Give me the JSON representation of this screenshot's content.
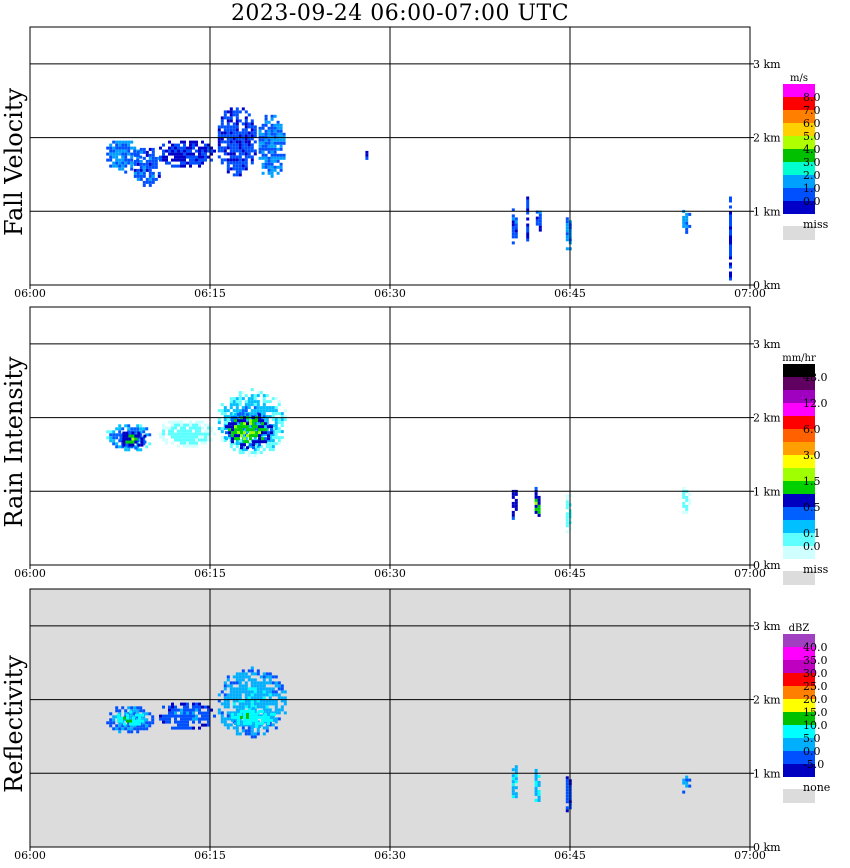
{
  "title": "2023-09-24   06:00-07:00 UTC",
  "x_ticks": [
    "06:00",
    "06:15",
    "06:30",
    "06:45",
    "07:00"
  ],
  "y_ticks": [
    "0 km",
    "1 km",
    "2 km",
    "3 km"
  ],
  "colors": {
    "missing_background": "#dcdcdc",
    "plot_background": "#ffffff"
  },
  "chart_data": [
    {
      "type": "heatmap",
      "ylabel": "Fall Velocity",
      "xlim": [
        "06:00",
        "07:00"
      ],
      "ylim_km": [
        0,
        3.5
      ],
      "grid": true,
      "legend_placement": "right",
      "colorbar": {
        "unit": "m/s",
        "labels": [
          "8.0",
          "7.0",
          "6.0",
          "5.0",
          "4.0",
          "3.0",
          "2.0",
          "1.0",
          "0.0"
        ],
        "colors": [
          "#ff00ff",
          "#ff0000",
          "#ff8000",
          "#ffd000",
          "#b0ff00",
          "#00c000",
          "#00ffd0",
          "#00a0ff",
          "#0050ff",
          "#0000c8"
        ],
        "missing_label": "miss",
        "missing_color": "#dcdcdc"
      },
      "echoes": [
        {
          "t0": 6.1,
          "t1": 9.2,
          "z0": 1.55,
          "z1": 2.0,
          "value": 2.0
        },
        {
          "t0": 8.4,
          "t1": 10.8,
          "z0": 1.35,
          "z1": 1.9,
          "value": 1.5
        },
        {
          "t0": 10.5,
          "t1": 15.3,
          "z0": 1.6,
          "z1": 2.0,
          "value": 1.0
        },
        {
          "t0": 15.4,
          "t1": 18.8,
          "z0": 1.5,
          "z1": 2.45,
          "value": 1.3
        },
        {
          "t0": 18.8,
          "t1": 21.2,
          "z0": 1.45,
          "z1": 2.35,
          "value": 2.0
        },
        {
          "t0": 27.7,
          "t1": 28.0,
          "z0": 1.68,
          "z1": 1.9,
          "value": 1.5
        },
        {
          "t0": 39.9,
          "t1": 40.6,
          "z0": 0.55,
          "z1": 1.08,
          "value": 1.5
        },
        {
          "t0": 41.1,
          "t1": 41.6,
          "z0": 0.6,
          "z1": 1.2,
          "value": 1.0
        },
        {
          "t0": 41.9,
          "t1": 42.6,
          "z0": 0.7,
          "z1": 1.05,
          "value": 1.5
        },
        {
          "t0": 44.4,
          "t1": 45.1,
          "z0": 0.45,
          "z1": 1.0,
          "value": 2.0
        },
        {
          "t0": 54.1,
          "t1": 54.9,
          "z0": 0.7,
          "z1": 1.1,
          "value": 2.0
        },
        {
          "t0": 58.0,
          "t1": 58.5,
          "z0": 0.1,
          "z1": 1.2,
          "value": 1.0
        }
      ]
    },
    {
      "type": "heatmap",
      "ylabel": "Rain Intensity",
      "xlim": [
        "06:00",
        "07:00"
      ],
      "ylim_km": [
        0,
        3.5
      ],
      "grid": true,
      "legend_placement": "right",
      "colorbar": {
        "unit": "mm/hr",
        "labels": [
          "48.0",
          "",
          "12.0",
          "",
          "6.0",
          "",
          "3.0",
          "",
          "1.5",
          "",
          "0.5",
          "",
          "0.1",
          "0.0"
        ],
        "colors": [
          "#000000",
          "#600060",
          "#a000c0",
          "#ff00ff",
          "#ff0000",
          "#ff6000",
          "#ffa000",
          "#ffff00",
          "#a0ff00",
          "#00d000",
          "#0000c0",
          "#0060ff",
          "#00c0ff",
          "#60ffff",
          "#d0ffff"
        ],
        "missing_label": "miss",
        "missing_color": "#dcdcdc"
      },
      "echoes": [
        {
          "t0": 6.1,
          "t1": 10.2,
          "z0": 1.55,
          "z1": 1.95,
          "value": 0.3
        },
        {
          "t0": 7.2,
          "t1": 9.7,
          "z0": 1.6,
          "z1": 1.85,
          "value": 0.6
        },
        {
          "t0": 10.5,
          "t1": 15.3,
          "z0": 1.6,
          "z1": 2.0,
          "value": 0.1
        },
        {
          "t0": 15.4,
          "t1": 21.4,
          "z0": 1.5,
          "z1": 2.4,
          "value": 0.2
        },
        {
          "t0": 16.0,
          "t1": 20.2,
          "z0": 1.6,
          "z1": 2.1,
          "value": 0.7
        },
        {
          "t0": 39.9,
          "t1": 40.6,
          "z0": 0.6,
          "z1": 1.1,
          "value": 0.5
        },
        {
          "t0": 41.8,
          "t1": 42.5,
          "z0": 0.55,
          "z1": 1.1,
          "value": 0.6
        },
        {
          "t0": 44.4,
          "t1": 45.1,
          "z0": 0.45,
          "z1": 1.0,
          "value": 0.1
        },
        {
          "t0": 54.1,
          "t1": 54.9,
          "z0": 0.7,
          "z1": 1.1,
          "value": 0.1
        }
      ]
    },
    {
      "type": "heatmap",
      "ylabel": "Reflectivity",
      "xlim": [
        "06:00",
        "07:00"
      ],
      "ylim_km": [
        0,
        3.5
      ],
      "grid": true,
      "legend_placement": "right",
      "colorbar": {
        "unit": "dBZ",
        "labels": [
          "40.0",
          "35.0",
          "30.0",
          "25.0",
          "20.0",
          "15.0",
          "10.0",
          "5.0",
          "0.0",
          "-5.0"
        ],
        "colors": [
          "#a040c0",
          "#ff00ff",
          "#c000c0",
          "#ff0000",
          "#ff8000",
          "#ffff00",
          "#00c000",
          "#00ffff",
          "#00b0ff",
          "#0050ff",
          "#0000c0"
        ],
        "missing_label": "none",
        "missing_color": "#dcdcdc"
      },
      "echoes": [
        {
          "t0": 6.1,
          "t1": 10.2,
          "z0": 1.55,
          "z1": 1.95,
          "value": 6
        },
        {
          "t0": 7.0,
          "t1": 9.5,
          "z0": 1.65,
          "z1": 1.85,
          "value": 14
        },
        {
          "t0": 10.5,
          "t1": 15.3,
          "z0": 1.6,
          "z1": 2.0,
          "value": 3
        },
        {
          "t0": 15.4,
          "t1": 21.4,
          "z0": 1.5,
          "z1": 2.45,
          "value": 8
        },
        {
          "t0": 16.5,
          "t1": 20.5,
          "z0": 1.65,
          "z1": 1.9,
          "value": 13
        },
        {
          "t0": 39.9,
          "t1": 40.6,
          "z0": 0.6,
          "z1": 1.15,
          "value": 9
        },
        {
          "t0": 41.8,
          "t1": 42.5,
          "z0": 0.6,
          "z1": 1.1,
          "value": 10
        },
        {
          "t0": 44.4,
          "t1": 45.1,
          "z0": 0.45,
          "z1": 1.0,
          "value": 2
        },
        {
          "t0": 54.1,
          "t1": 54.9,
          "z0": 0.75,
          "z1": 1.05,
          "value": 5
        }
      ]
    }
  ]
}
